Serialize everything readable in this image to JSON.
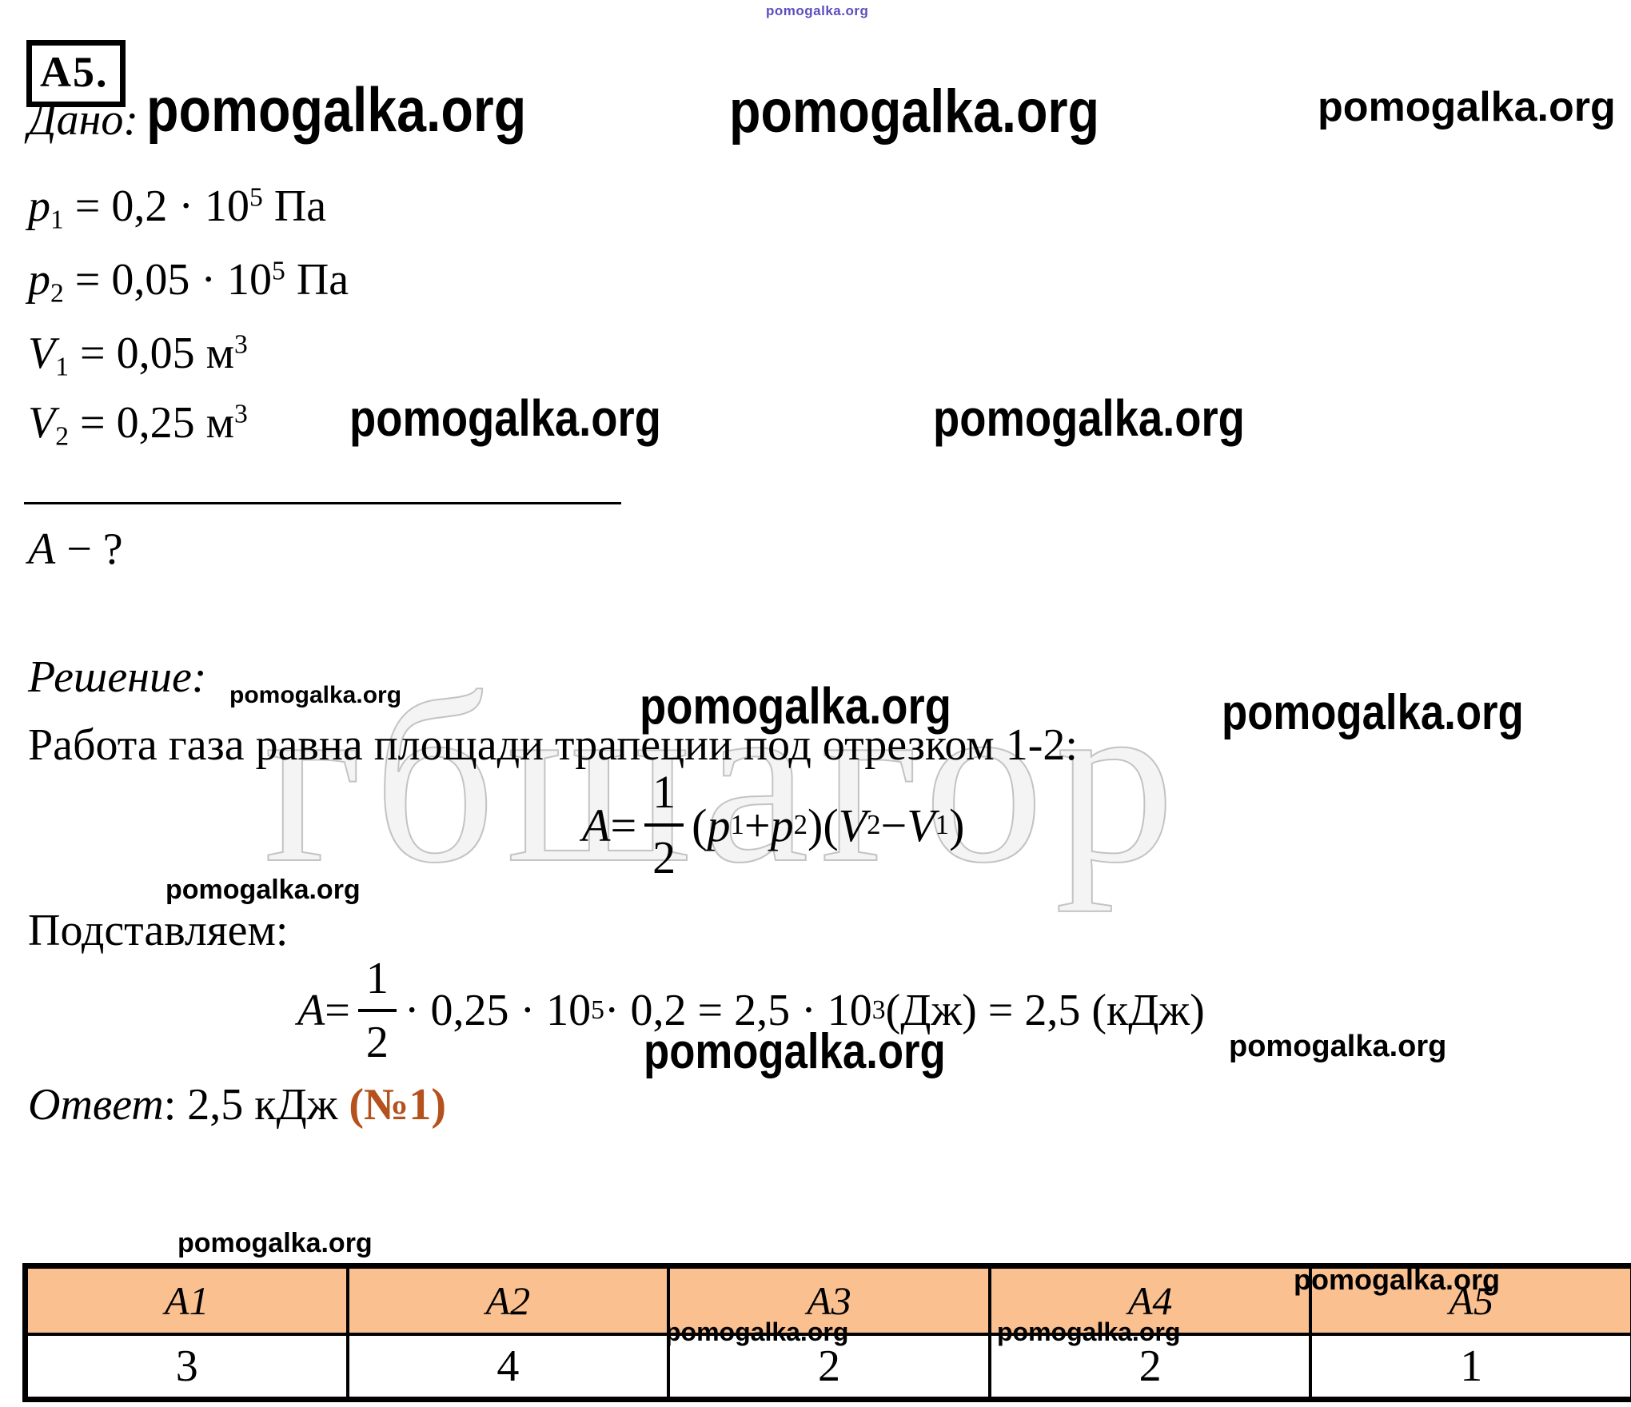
{
  "problem": {
    "label": "А5.",
    "given_title": "Дано:",
    "given": [
      {
        "v": "p",
        "s": "1",
        "mid": " = 0,2 · 10",
        "exp": "5",
        "unit": " Па"
      },
      {
        "v": "p",
        "s": "2",
        "mid": " = 0,05 · 10",
        "exp": "5",
        "unit": " Па"
      },
      {
        "v": "V",
        "s": "1",
        "mid": " = 0,05 м",
        "exp": "3",
        "unit": ""
      },
      {
        "v": "V",
        "s": "2",
        "mid": " = 0,25 м",
        "exp": "3",
        "unit": ""
      }
    ],
    "find_var": "A",
    "find_rest": " − ?",
    "solution_title": "Решение:",
    "solution_text": "Работа газа равна площади трапеции под отрезком 1-2:",
    "substitute_label": "Подставляем:",
    "answer_label": "Ответ",
    "answer_text": ": 2,5 кДж ",
    "answer_choice": "(№1)",
    "answer_choice_color": "#b4511c"
  },
  "formula1": {
    "lhs": "A",
    "eq": " = ",
    "num": "1",
    "den": "2",
    "t1": "(",
    "v1": "p",
    "s1": "1",
    "t2": " + ",
    "v2": "p",
    "s2": "2",
    "t3": ")(",
    "v3": "V",
    "s3": "2",
    "t4": " − ",
    "v4": "V",
    "s4": "1",
    "t5": ")"
  },
  "formula2": {
    "lhs": "A",
    "eq": " = ",
    "num": "1",
    "den": "2",
    "m1": " · 0,25 · 10",
    "e1": "5",
    "m2": " · 0,2 = 2,5 · 10",
    "e2": "3",
    "m3": " (Дж) = 2,5 (кДж)"
  },
  "watermarks": {
    "site": "pomogalka.org",
    "tiny_color": "#4a3ab8",
    "ghost": "гбшагор"
  },
  "answers_table": {
    "headers": [
      "А1",
      "А2",
      "А3",
      "А4",
      "А5"
    ],
    "values": [
      "3",
      "4",
      "2",
      "2",
      "1"
    ],
    "header_bg": "#FAC090",
    "border_color": "#000000"
  }
}
